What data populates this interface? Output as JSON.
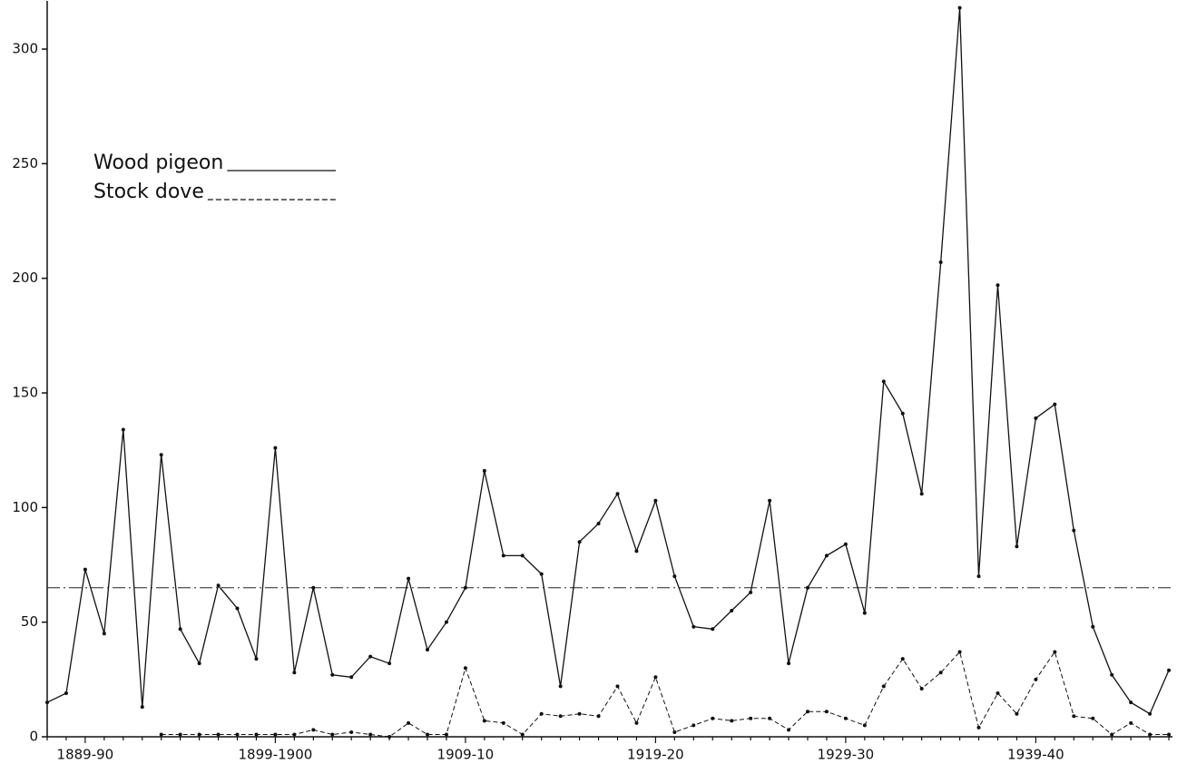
{
  "chart_data": {
    "type": "line",
    "categories": [
      null,
      null,
      "1889-90",
      null,
      null,
      null,
      null,
      null,
      null,
      null,
      null,
      null,
      "1899-1900",
      null,
      null,
      null,
      null,
      null,
      null,
      null,
      null,
      null,
      "1909-10",
      null,
      null,
      null,
      null,
      null,
      null,
      null,
      null,
      null,
      "1919-20",
      null,
      null,
      null,
      null,
      null,
      null,
      null,
      null,
      null,
      "1929-30",
      null,
      null,
      null,
      null,
      null,
      null,
      null,
      null,
      null,
      "1939-40",
      null,
      null,
      null,
      null,
      null,
      null,
      null
    ],
    "series": [
      {
        "name": "Wood pigeon",
        "color": "#111111",
        "dash": "solid",
        "values": [
          15,
          19,
          73,
          45,
          134,
          13,
          123,
          47,
          32,
          66,
          56,
          34,
          126,
          28,
          65,
          27,
          26,
          35,
          32,
          69,
          38,
          50,
          65,
          116,
          79,
          79,
          71,
          22,
          85,
          93,
          106,
          81,
          103,
          70,
          48,
          47,
          55,
          63,
          103,
          32,
          65,
          79,
          84,
          54,
          155,
          141,
          106,
          207,
          318,
          70,
          197,
          83,
          139,
          145,
          90,
          48,
          27,
          15,
          10,
          29
        ]
      },
      {
        "name": "Stock dove",
        "color": "#111111",
        "dash": "dashed",
        "values": [
          null,
          null,
          null,
          null,
          null,
          null,
          1,
          1,
          1,
          1,
          1,
          1,
          1,
          1,
          3,
          1,
          2,
          1,
          0,
          6,
          1,
          1,
          30,
          7,
          6,
          1,
          10,
          9,
          10,
          9,
          22,
          6,
          26,
          2,
          5,
          8,
          7,
          8,
          8,
          3,
          11,
          11,
          8,
          5,
          22,
          34,
          21,
          28,
          37,
          4,
          19,
          10,
          25,
          37,
          9,
          8,
          1,
          6,
          1,
          1
        ]
      }
    ],
    "reference_line": {
      "value": 65
    },
    "ylim": [
      0,
      321
    ],
    "yticks": [
      0,
      50,
      100,
      150,
      200,
      250,
      300
    ],
    "grid": false,
    "legend": "upper left"
  }
}
